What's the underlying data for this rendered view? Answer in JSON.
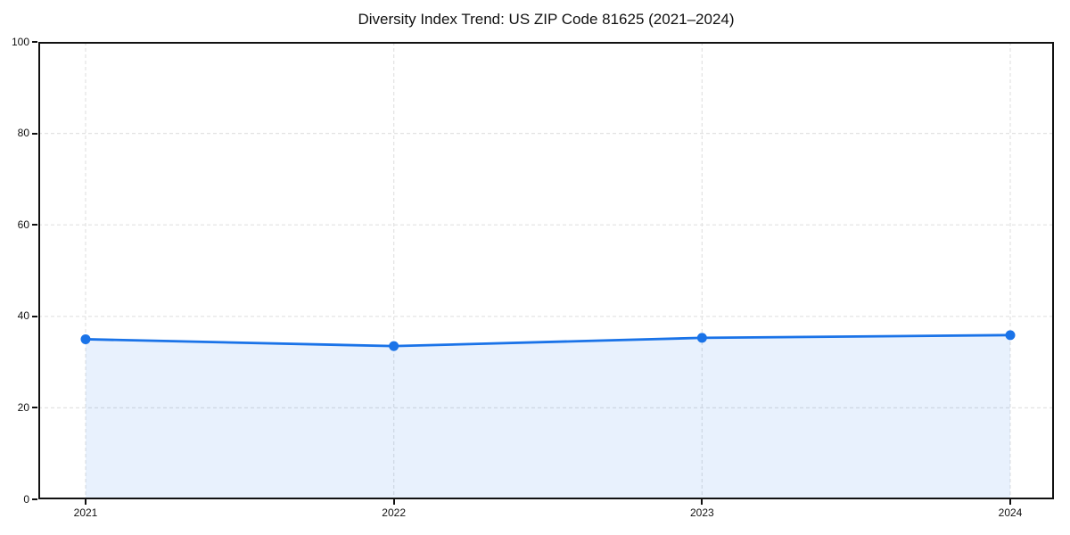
{
  "page": {
    "background": "#ffffff"
  },
  "chart_data": {
    "type": "line",
    "area_fill": true,
    "title": "Diversity Index Trend: US ZIP Code 81625 (2021–2024)",
    "xlabel": "",
    "ylabel": "",
    "x": [
      "2021",
      "2022",
      "2023",
      "2024"
    ],
    "values": [
      35.0,
      33.5,
      35.3,
      35.9
    ],
    "ylim": [
      0,
      100
    ],
    "yticks": [
      0,
      20,
      40,
      60,
      80,
      100
    ],
    "grid": "dashed-both-axes",
    "legend": "none",
    "colors": {
      "line": "#1a73e8",
      "marker": "#1a73e8",
      "fill": "rgba(26,115,232,0.10)",
      "grid": "#e2e2e2",
      "spine": "#111111",
      "text": "#111111"
    }
  }
}
